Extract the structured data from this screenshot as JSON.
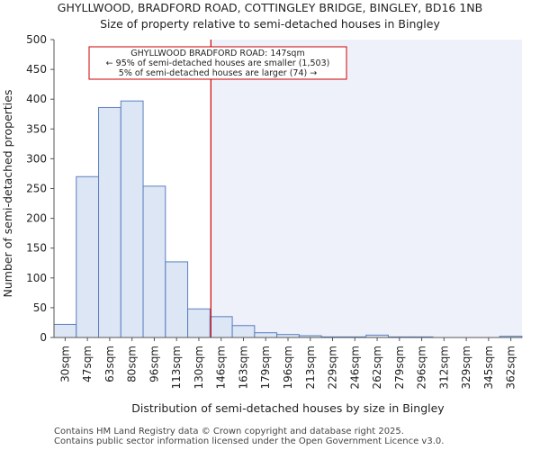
{
  "chart_data": {
    "type": "bar",
    "title": "GHYLLWOOD, BRADFORD ROAD, COTTINGLEY BRIDGE, BINGLEY, BD16 1NB",
    "subtitle": "Size of property relative to semi-detached houses in Bingley",
    "xlabel": "Distribution of semi-detached houses by size in Bingley",
    "ylabel": "Number of semi-detached properties",
    "ylim": [
      0,
      500
    ],
    "y_ticks": [
      "0",
      "50",
      "100",
      "150",
      "200",
      "250",
      "300",
      "350",
      "400",
      "450",
      "500"
    ],
    "categories": [
      "30sqm",
      "47sqm",
      "63sqm",
      "80sqm",
      "96sqm",
      "113sqm",
      "130sqm",
      "146sqm",
      "163sqm",
      "179sqm",
      "196sqm",
      "213sqm",
      "229sqm",
      "246sqm",
      "262sqm",
      "279sqm",
      "296sqm",
      "312sqm",
      "329sqm",
      "345sqm",
      "362sqm"
    ],
    "values": [
      22,
      270,
      386,
      397,
      254,
      127,
      48,
      35,
      20,
      8,
      5,
      3,
      1,
      1,
      4,
      1,
      1,
      0,
      0,
      0,
      2
    ],
    "bar_color": "#dce6f4",
    "bar_edge_color": "#5b7fbf",
    "marker": {
      "value": "147sqm",
      "color": "#cc0000",
      "highlight_color": "#eef1fa",
      "annotation_lines": [
        "GHYLLWOOD BRADFORD ROAD: 147sqm",
        "← 95% of semi-detached houses are smaller (1,503)",
        "5% of semi-detached houses are larger (74) →"
      ]
    },
    "grid": false,
    "legend": "none"
  },
  "footer": {
    "line1": "Contains HM Land Registry data © Crown copyright and database right 2025.",
    "line2": "Contains public sector information licensed under the Open Government Licence v3.0."
  }
}
